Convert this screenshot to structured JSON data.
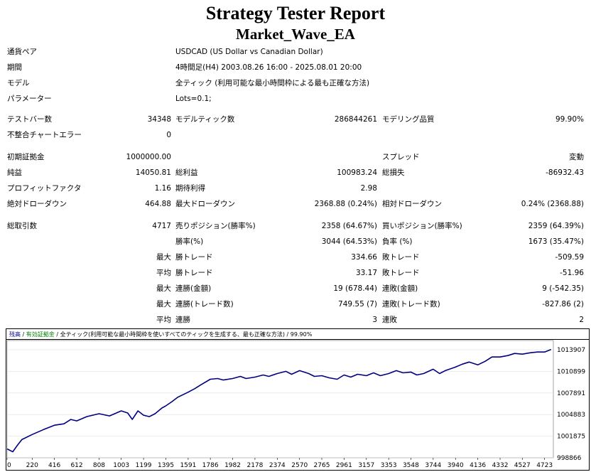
{
  "header": {
    "title": "Strategy Tester Report",
    "subtitle": "Market_Wave_EA"
  },
  "info": {
    "symbol_label": "通貨ペア",
    "symbol_value": "USDCAD (US Dollar vs Canadian Dollar)",
    "period_label": "期間",
    "period_value": "4時間足(H4) 2003.08.26 16:00 - 2025.08.01 20:00",
    "model_label": "モデル",
    "model_value": "全ティック (利用可能な最小時間枠による最も正確な方法)",
    "params_label": "パラメーター",
    "params_value": "Lots=0.1;"
  },
  "bars": {
    "bars_label": "テストバー数",
    "bars_value": "34348",
    "ticks_label": "モデルティック数",
    "ticks_value": "286844261",
    "quality_label": "モデリング品質",
    "quality_value": "99.90%",
    "errors_label": "不整合チャートエラー",
    "errors_value": "0"
  },
  "stats": {
    "deposit_label": "初期証拠金",
    "deposit_value": "1000000.00",
    "spread_label": "スプレッド",
    "spread_value": "変動",
    "net_label": "純益",
    "net_value": "14050.81",
    "gross_profit_label": "総利益",
    "gross_profit_value": "100983.24",
    "gross_loss_label": "総損失",
    "gross_loss_value": "-86932.43",
    "pf_label": "プロフィットファクタ",
    "pf_value": "1.16",
    "expected_label": "期待利得",
    "expected_value": "2.98",
    "abs_dd_label": "絶対ドローダウン",
    "abs_dd_value": "464.88",
    "max_dd_label": "最大ドローダウン",
    "max_dd_value": "2368.88 (0.24%)",
    "rel_dd_label": "相対ドローダウン",
    "rel_dd_value": "0.24% (2368.88)"
  },
  "trades": {
    "total_label": "総取引数",
    "total_value": "4717",
    "short_label": "売りポジション(勝率%)",
    "short_value": "2358 (64.67%)",
    "long_label": "買いポジション(勝率%)",
    "long_value": "2359 (64.39%)",
    "win_label": "勝率(%)",
    "win_value": "3044 (64.53%)",
    "loss_label": "負率 (%)",
    "loss_value": "1673 (35.47%)",
    "max_label": "最大",
    "avg_label": "平均",
    "largest_win_label": "勝トレード",
    "largest_win_value": "334.66",
    "largest_loss_label": "敗トレード",
    "largest_loss_value": "-509.59",
    "avg_win_label": "勝トレード",
    "avg_win_value": "33.17",
    "avg_loss_label": "敗トレード",
    "avg_loss_value": "-51.96",
    "cons_win_money_label": "連勝(金額)",
    "cons_win_money_value": "19 (678.44)",
    "cons_loss_money_label": "連敗(金額)",
    "cons_loss_money_value": "9 (-542.35)",
    "cons_win_count_label": "連勝(トレード数)",
    "cons_win_count_value": "749.55 (7)",
    "cons_loss_count_label": "連敗(トレード数)",
    "cons_loss_count_value": "-827.86 (2)",
    "avg_cons_win_label": "連勝",
    "avg_cons_win_value": "3",
    "avg_cons_loss_label": "連敗",
    "avg_cons_loss_value": "2"
  },
  "chart_legend": {
    "balance": "残高",
    "equity": "有効証拠金",
    "model": "全ティック(利用可能な最小時間枠を使いすべてのティックを生成する、最も正確な方法)",
    "quality": "99.90%",
    "sep": "/"
  },
  "chart_data": {
    "type": "line",
    "yticks": [
      998866,
      1001875,
      1004883,
      1007891,
      1010899,
      1013907
    ],
    "xticks": [
      0,
      220,
      416,
      612,
      808,
      1003,
      1199,
      1395,
      1591,
      1786,
      1982,
      2178,
      2374,
      2570,
      2765,
      2961,
      3157,
      3353,
      3548,
      3744,
      3940,
      4136,
      4332,
      4527,
      4723
    ],
    "xlim": [
      0,
      4800
    ],
    "ylim": [
      998866,
      1015200
    ],
    "series": [
      {
        "color": "#000080",
        "x": [
          0,
          50,
          90,
          130,
          220,
          320,
          416,
          500,
          560,
          612,
          700,
          808,
          900,
          1003,
          1060,
          1100,
          1150,
          1199,
          1250,
          1300,
          1360,
          1395,
          1450,
          1500,
          1591,
          1650,
          1700,
          1786,
          1850,
          1900,
          1982,
          2050,
          2100,
          2178,
          2250,
          2300,
          2374,
          2450,
          2500,
          2570,
          2650,
          2700,
          2765,
          2830,
          2900,
          2961,
          3020,
          3080,
          3157,
          3220,
          3280,
          3353,
          3420,
          3480,
          3548,
          3600,
          3660,
          3744,
          3800,
          3850,
          3940,
          4000,
          4060,
          4136,
          4200,
          4260,
          4332,
          4400,
          4460,
          4527,
          4600,
          4660,
          4723,
          4780
        ],
        "values": [
          1000100,
          999700,
          1000600,
          1001400,
          1002100,
          1002800,
          1003400,
          1003600,
          1004200,
          1004000,
          1004600,
          1005000,
          1004700,
          1005400,
          1005100,
          1004200,
          1005400,
          1004800,
          1004600,
          1005000,
          1005800,
          1006100,
          1006700,
          1007300,
          1008000,
          1008500,
          1009000,
          1009800,
          1009900,
          1009700,
          1009900,
          1010200,
          1009900,
          1010100,
          1010400,
          1010200,
          1010600,
          1010900,
          1010500,
          1011000,
          1010600,
          1010200,
          1010300,
          1010000,
          1009800,
          1010400,
          1010100,
          1010500,
          1010300,
          1010700,
          1010300,
          1010600,
          1011000,
          1010700,
          1010800,
          1010400,
          1010600,
          1011200,
          1010600,
          1011000,
          1011500,
          1011900,
          1012200,
          1011800,
          1012300,
          1012900,
          1012900,
          1013100,
          1013400,
          1013300,
          1013500,
          1013600,
          1013600,
          1013950
        ]
      }
    ]
  }
}
